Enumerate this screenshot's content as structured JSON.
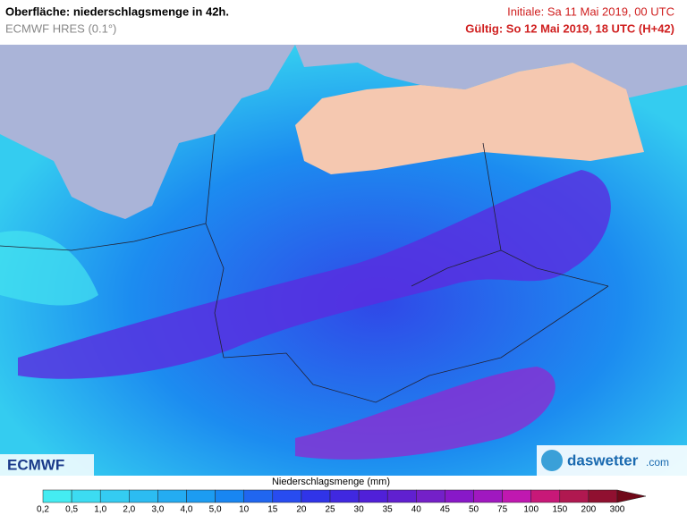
{
  "header": {
    "title": "Oberfläche: niederschlagsmenge in 42h.",
    "model": "ECMWF HRES (0.1°)",
    "initial": "Initiale: Sa 11 Mai 2019, 00 UTC",
    "valid": "Gültig: So 12 Mai 2019, 18 UTC (H+42)"
  },
  "logos": {
    "left": "ECMWF",
    "right_name": "daswetter",
    "right_suffix": ".com"
  },
  "legend": {
    "title": "Niederschlagsmenge (mm)",
    "ticks": [
      "0,2",
      "0,5",
      "1,0",
      "2,0",
      "3,0",
      "4,0",
      "5,0",
      "10",
      "15",
      "20",
      "25",
      "30",
      "35",
      "40",
      "45",
      "50",
      "75",
      "100",
      "150",
      "200",
      "300"
    ],
    "colors": [
      "#44ecf2",
      "#3cdcf2",
      "#34ccf2",
      "#2cbcf2",
      "#24acf2",
      "#1c9cf2",
      "#1886f2",
      "#2066f0",
      "#284cf0",
      "#3034e8",
      "#4028e0",
      "#5020d8",
      "#6020d0",
      "#7420c8",
      "#8818c8",
      "#a018c0",
      "#c018b0",
      "#c81878",
      "#b01850",
      "#901030",
      "#700818"
    ]
  }
}
